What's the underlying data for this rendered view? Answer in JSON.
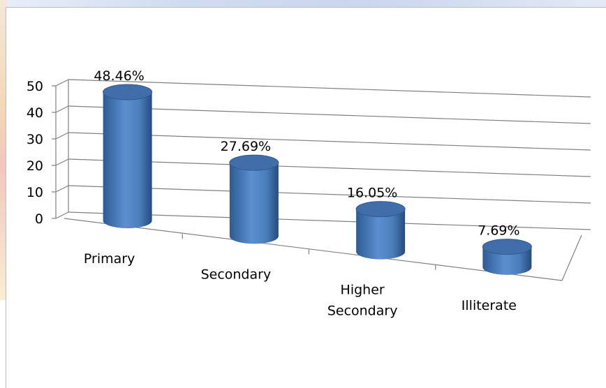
{
  "chart_data": {
    "type": "bar",
    "style": "3d-cylinder",
    "categories": [
      "Primary",
      "Secondary",
      "Higher Secondary",
      "Illiterate"
    ],
    "values": [
      48.46,
      27.69,
      16.05,
      7.69
    ],
    "data_labels": [
      "48.46%",
      "27.69%",
      "16.05%",
      "7.69%"
    ],
    "y_ticks": [
      "0",
      "10",
      "20",
      "30",
      "40",
      "50"
    ],
    "ylim": [
      0,
      50
    ],
    "grid": true,
    "legend": false,
    "bar_color": "#4a7ebb",
    "title": "",
    "xlabel": "",
    "ylabel": ""
  }
}
